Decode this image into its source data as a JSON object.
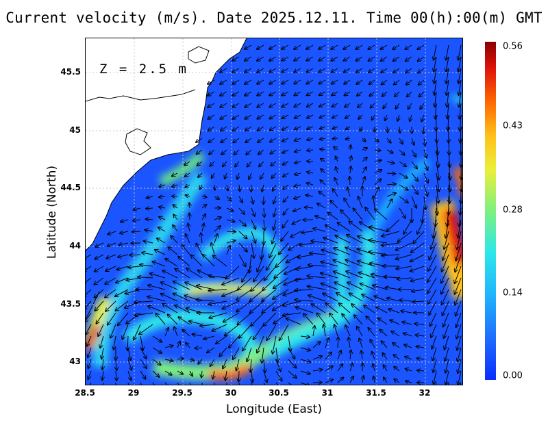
{
  "title": "Current velocity (m/s). Date 2025.12.11. Time 00(h):00(m) GMT",
  "depth_label": "Z = 2.5 m",
  "x_axis": {
    "label": "Longitude (East)",
    "ticks": [
      "28.5",
      "29",
      "29.5",
      "30",
      "30.5",
      "31",
      "31.5",
      "32"
    ],
    "range": [
      28.5,
      32.4
    ]
  },
  "y_axis": {
    "label": "Latitude (North)",
    "ticks": [
      "43",
      "43.5",
      "44",
      "44.5",
      "45",
      "45.5"
    ],
    "range": [
      42.8,
      45.8
    ]
  },
  "colorbar": {
    "ticks": [
      "0.56",
      "0.43",
      "0.28",
      "0.14",
      "0.00"
    ],
    "min": 0.0,
    "max": 0.56,
    "colormap": "jet"
  },
  "colors": {
    "sea_background": "#1a55ff",
    "land": "#ffffff",
    "coastline": "#000000",
    "grid": "#c8c8c8"
  }
}
